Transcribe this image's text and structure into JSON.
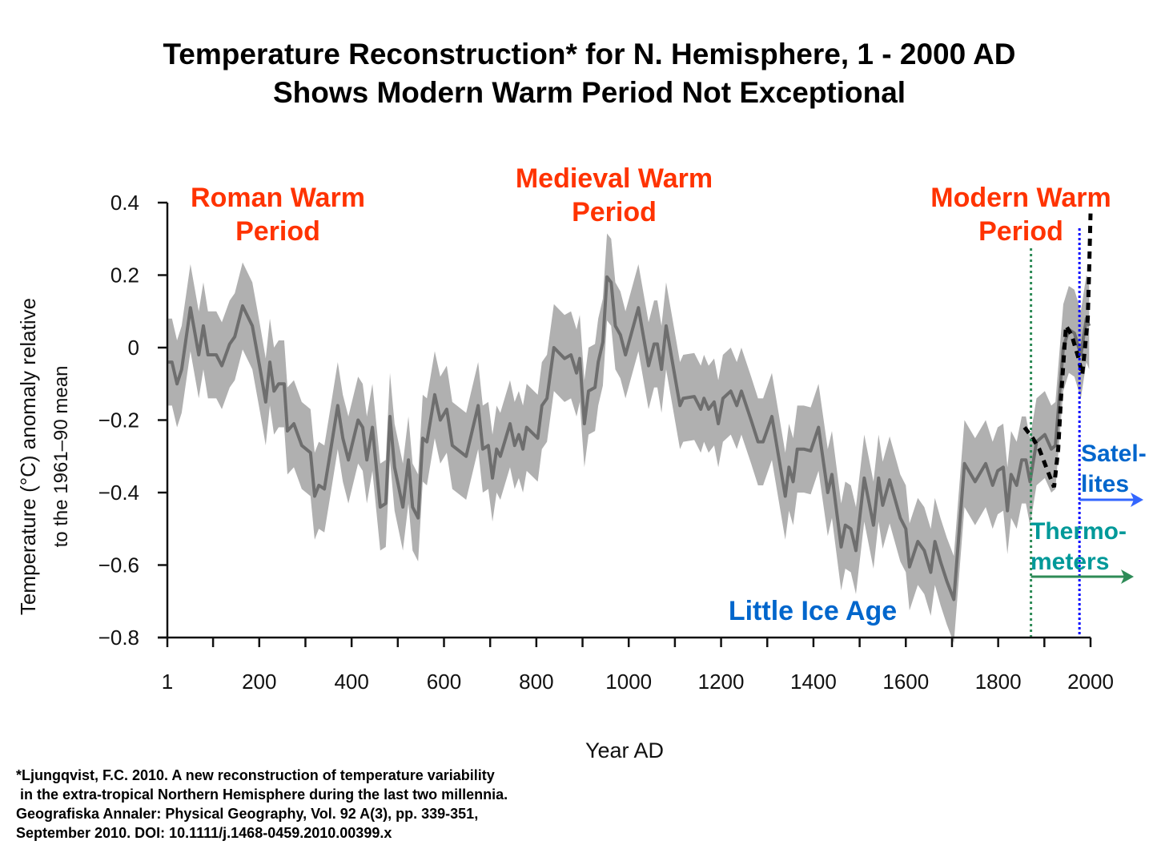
{
  "title_line1": "Temperature Reconstruction* for N. Hemisphere, 1 - 2000 AD",
  "title_line2": "Shows Modern Warm Period Not Exceptional",
  "annotations": {
    "roman_1": "Roman Warm",
    "roman_2": "Period",
    "medieval_1": "Medieval Warm",
    "medieval_2": "Period",
    "modern_1": "Modern Warm",
    "modern_2": "Period",
    "lia": "Little Ice Age",
    "satellites_1": "Satel-",
    "satellites_2": "lites",
    "thermo_1": "Thermo-",
    "thermo_2": "meters"
  },
  "footnote": {
    "line1": "*Ljungqvist, F.C. 2010. A new reconstruction of temperature variability",
    "line2": " in the extra-tropical Northern Hemisphere during the last two millennia.",
    "line3": "Geografiska Annaler: Physical Geography, Vol. 92 A(3), pp. 339-351,",
    "line4": "September 2010. DOI: 10.1111/j.1468-0459.2010.00399.x"
  },
  "colors": {
    "annotation_red": "#FF3300",
    "lia_blue": "#0066CC",
    "satellite_blue": "#0000FF",
    "thermometer_green": "#2E8B57",
    "thermometer_text": "#009999",
    "arrow_blue": "#3366FF",
    "band": "#B0B0B0",
    "line": "#6E6E6E",
    "instrumental": "#000000"
  },
  "chart_data": {
    "type": "line",
    "xlabel": "Year AD",
    "ylabel_line1": "Temperature (°C) anomaly relative",
    "ylabel_line2": "to the 1961–90 mean",
    "xlim": [
      1,
      2000
    ],
    "ylim": [
      -0.8,
      0.4
    ],
    "x_ticks": [
      1,
      100,
      200,
      300,
      400,
      500,
      600,
      700,
      800,
      900,
      1000,
      1100,
      1200,
      1300,
      1400,
      1500,
      1600,
      1700,
      1800,
      1900,
      2000
    ],
    "x_tick_labels": [
      "1",
      "200",
      "400",
      "600",
      "800",
      "1000",
      "1200",
      "1400",
      "1600",
      "1800",
      "2000"
    ],
    "x_tick_label_values": [
      1,
      200,
      400,
      600,
      800,
      1000,
      1200,
      1400,
      1600,
      1800,
      2000
    ],
    "y_ticks": [
      0.4,
      0.2,
      0,
      -0.2,
      -0.4,
      -0.6,
      -0.8
    ],
    "y_tick_labels": [
      "0.4",
      "0.2",
      "0",
      "−0.2",
      "−0.4",
      "−0.6",
      "−0.8"
    ],
    "grid": false,
    "band_halfwidth": 0.12,
    "reconstruction": {
      "x": [
        3,
        11,
        22,
        32,
        51,
        69,
        79,
        89,
        107,
        119,
        136,
        147,
        164,
        185,
        202,
        214,
        223,
        232,
        242,
        254,
        261,
        275,
        292,
        311,
        320,
        329,
        341,
        355,
        370,
        381,
        393,
        414,
        424,
        433,
        445,
        462,
        474,
        483,
        493,
        511,
        523,
        532,
        544,
        554,
        563,
        580,
        592,
        606,
        618,
        648,
        674,
        684,
        696,
        705,
        714,
        722,
        743,
        753,
        762,
        771,
        779,
        803,
        812,
        823,
        838,
        861,
        875,
        887,
        894,
        904,
        913,
        927,
        934,
        944,
        953,
        962,
        971,
        982,
        993,
        1021,
        1043,
        1055,
        1062,
        1071,
        1081,
        1111,
        1118,
        1142,
        1156,
        1163,
        1173,
        1185,
        1194,
        1204,
        1221,
        1234,
        1244,
        1265,
        1280,
        1291,
        1310,
        1339,
        1347,
        1356,
        1365,
        1379,
        1394,
        1411,
        1431,
        1440,
        1460,
        1469,
        1481,
        1492,
        1510,
        1530,
        1541,
        1550,
        1565,
        1588,
        1600,
        1608,
        1626,
        1640,
        1654,
        1663,
        1675,
        1689,
        1704,
        1727,
        1750,
        1773,
        1788,
        1799,
        1811,
        1820,
        1828,
        1840,
        1851,
        1860,
        1869,
        1883,
        1901,
        1915,
        1924,
        1941,
        1953,
        1965,
        1979,
        1991,
        1997
      ],
      "y": [
        -0.04,
        -0.04,
        -0.1,
        -0.06,
        0.11,
        -0.02,
        0.06,
        -0.02,
        -0.02,
        -0.05,
        0.01,
        0.03,
        0.115,
        0.06,
        -0.06,
        -0.15,
        -0.04,
        -0.12,
        -0.1,
        -0.1,
        -0.23,
        -0.21,
        -0.27,
        -0.29,
        -0.41,
        -0.38,
        -0.39,
        -0.28,
        -0.16,
        -0.25,
        -0.31,
        -0.2,
        -0.22,
        -0.31,
        -0.22,
        -0.44,
        -0.43,
        -0.19,
        -0.33,
        -0.44,
        -0.31,
        -0.44,
        -0.47,
        -0.25,
        -0.26,
        -0.13,
        -0.2,
        -0.17,
        -0.27,
        -0.3,
        -0.16,
        -0.28,
        -0.27,
        -0.36,
        -0.28,
        -0.3,
        -0.21,
        -0.27,
        -0.24,
        -0.28,
        -0.22,
        -0.25,
        -0.16,
        -0.14,
        0.0,
        -0.03,
        -0.02,
        -0.07,
        -0.03,
        -0.21,
        -0.12,
        -0.11,
        -0.04,
        0.015,
        0.195,
        0.18,
        0.06,
        0.035,
        -0.02,
        0.11,
        -0.05,
        0.01,
        0.01,
        -0.06,
        0.06,
        -0.16,
        -0.14,
        -0.135,
        -0.17,
        -0.14,
        -0.17,
        -0.15,
        -0.21,
        -0.14,
        -0.12,
        -0.16,
        -0.12,
        -0.2,
        -0.26,
        -0.26,
        -0.19,
        -0.41,
        -0.33,
        -0.37,
        -0.28,
        -0.28,
        -0.285,
        -0.22,
        -0.4,
        -0.35,
        -0.55,
        -0.49,
        -0.5,
        -0.56,
        -0.36,
        -0.49,
        -0.36,
        -0.435,
        -0.365,
        -0.47,
        -0.5,
        -0.605,
        -0.535,
        -0.56,
        -0.62,
        -0.535,
        -0.59,
        -0.645,
        -0.695,
        -0.32,
        -0.37,
        -0.32,
        -0.38,
        -0.34,
        -0.33,
        -0.45,
        -0.35,
        -0.38,
        -0.31,
        -0.31,
        -0.37,
        -0.26,
        -0.24,
        -0.28,
        -0.27,
        0.0,
        0.05,
        0.04,
        -0.02,
        0.08,
        0.06
      ]
    },
    "instrumental": {
      "x": [
        1857,
        1875,
        1889,
        1907,
        1921,
        1930,
        1936,
        1944,
        1947,
        1959,
        1973,
        1982,
        1988,
        1994,
        1997,
        2000
      ],
      "y": [
        -0.22,
        -0.25,
        -0.28,
        -0.34,
        -0.385,
        -0.28,
        -0.14,
        0.01,
        0.06,
        0.035,
        -0.025,
        -0.075,
        0.0,
        0.08,
        0.215,
        0.37
      ]
    },
    "markers": {
      "thermometers_year": 1871,
      "satellites_year": 1976
    }
  }
}
